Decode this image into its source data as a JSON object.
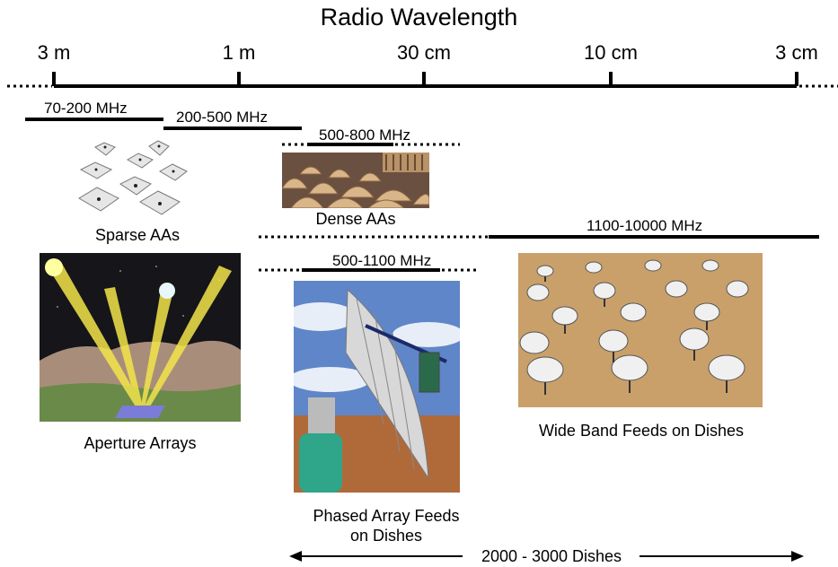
{
  "title": "Radio Wavelength",
  "scale": {
    "ticks": [
      "3 m",
      "1 m",
      "30 cm",
      "10 cm",
      "3 cm"
    ]
  },
  "bands": {
    "b70_200": "70-200 MHz",
    "b200_500": "200-500 MHz",
    "b500_800": "500-800 MHz",
    "b500_1100": "500-1100 MHz",
    "b1100_10000": "1100-10000 MHz"
  },
  "captions": {
    "sparse": "Sparse AAs",
    "dense": "Dense AAs",
    "aperture": "Aperture Arrays",
    "phased_line1": "Phased Array Feeds",
    "phased_line2": "on Dishes",
    "wideband": "Wide Band Feeds on Dishes"
  },
  "dishes_range": "2000 - 3000 Dishes",
  "colors": {
    "line": "#000000",
    "beam": "#f2e44a",
    "sky_night": "#15151a",
    "desert": "#c9a06a",
    "sky_day": "#5f86c8",
    "pedestal": "#2fa58a"
  }
}
